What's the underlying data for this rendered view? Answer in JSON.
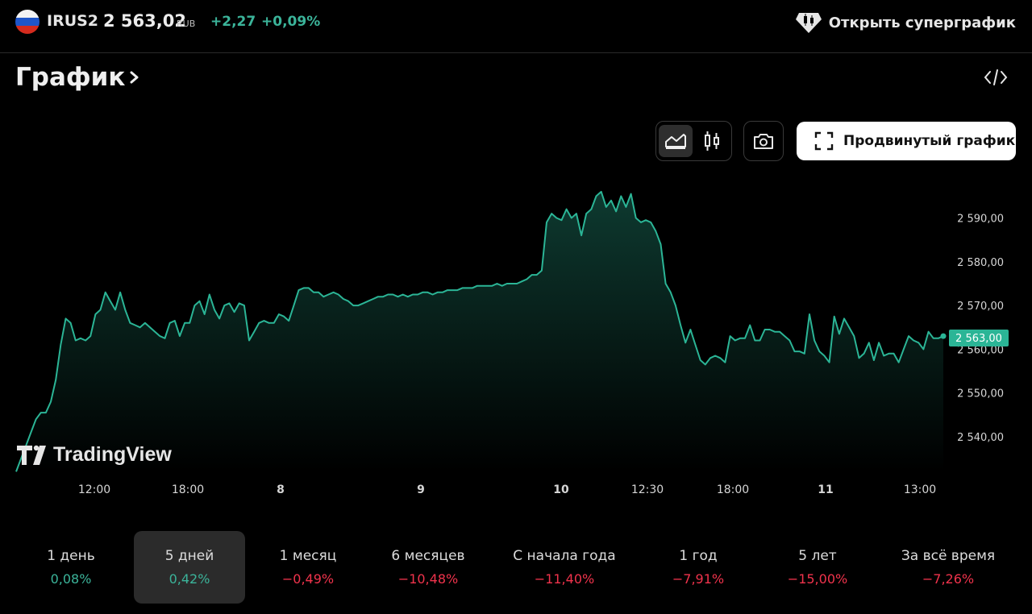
{
  "header": {
    "ticker": "IRUS2",
    "price": "2 563,02",
    "currency": "RUB",
    "change_abs": "+2,27",
    "change_pct": "+0,09%",
    "flag_icon": "russia-flag-icon",
    "supergraph_label": "Открыть суперграфик",
    "supergraph_icon": "diamond-candlestick-icon"
  },
  "section": {
    "title": "График",
    "embed_icon": "code-embed-icon"
  },
  "toolbar": {
    "area_icon": "area-chart-icon",
    "candles_icon": "candlestick-chart-icon",
    "snapshot_icon": "camera-icon",
    "advanced_label": "Продвинутый график",
    "advanced_icon": "fullscreen-icon"
  },
  "colors": {
    "accent": "#2bb596",
    "positive": "#3bb49a",
    "negative": "#f0334c"
  },
  "watermark": "TradingView",
  "chart_data": {
    "type": "area",
    "y_ticks": [
      "2 590,00",
      "2 580,00",
      "2 570,00",
      "2 560,00",
      "2 550,00",
      "2 540,00"
    ],
    "y_tick_values": [
      2590,
      2580,
      2570,
      2560,
      2550,
      2540
    ],
    "x_ticks": [
      "12:00",
      "18:00",
      "8",
      "9",
      "10",
      "12:30",
      "18:00",
      "11",
      "13:00"
    ],
    "last_price_label": "2 563,00",
    "last_price": 2563.0,
    "ylim": [
      2532,
      2597
    ],
    "series": [
      {
        "values": [
          2532,
          2535,
          2538,
          2541,
          2544,
          2545.5,
          2545.5,
          2548,
          2553,
          2561,
          2567,
          2566,
          2562,
          2562.5,
          2562,
          2563,
          2568,
          2569,
          2573,
          2571,
          2569,
          2573,
          2569,
          2566,
          2565.5,
          2565,
          2566,
          2565,
          2564,
          2563,
          2562.5,
          2566,
          2566.5,
          2563,
          2566,
          2566,
          2570,
          2571,
          2568,
          2572.5,
          2569,
          2567,
          2570,
          2570.5,
          2568.5,
          2570.5,
          2570,
          2562,
          2564,
          2566,
          2566.5,
          2566,
          2566,
          2568,
          2567.5,
          2566.5,
          2570,
          2573.5,
          2574,
          2574,
          2573,
          2573,
          2572,
          2572.5,
          2573,
          2572.5,
          2571.5,
          2571,
          2570,
          2570,
          2570.5,
          2571,
          2571.5,
          2572,
          2572,
          2572.5,
          2572.5,
          2572,
          2572.5,
          2572,
          2572.5,
          2572.5,
          2573,
          2573,
          2572.5,
          2573,
          2573,
          2573.5,
          2573.5,
          2573.5,
          2574,
          2574,
          2574,
          2574.5,
          2574.5,
          2574.5,
          2574.5,
          2575,
          2574.5,
          2575,
          2575,
          2575,
          2575.5,
          2576,
          2577,
          2577,
          2578,
          2589,
          2591,
          2590,
          2589.5,
          2592,
          2590,
          2591,
          2586,
          2591,
          2592,
          2595,
          2596,
          2592.5,
          2594,
          2591.5,
          2595,
          2592.5,
          2595.5,
          2590,
          2589,
          2589.5,
          2589,
          2587,
          2584,
          2575,
          2573,
          2570,
          2565.5,
          2561.5,
          2564.5,
          2561,
          2557.5,
          2556.5,
          2558,
          2558.5,
          2558,
          2557,
          2563,
          2562,
          2562.5,
          2562.5,
          2565.5,
          2562,
          2562,
          2564.5,
          2564.5,
          2564,
          2564,
          2563,
          2562,
          2559.5,
          2559.5,
          2559,
          2568,
          2562,
          2559.5,
          2558.5,
          2557,
          2567.5,
          2563.5,
          2567,
          2565,
          2563,
          2558,
          2559,
          2561.5,
          2557.5,
          2561.5,
          2558.5,
          2559,
          2559,
          2557,
          2560,
          2563,
          2562,
          2561.5,
          2560,
          2564,
          2562.5,
          2562.5,
          2563
        ]
      }
    ]
  },
  "periods": [
    {
      "label": "1 день",
      "value": "0,08%",
      "sign": "pos",
      "active": false
    },
    {
      "label": "5 дней",
      "value": "0,42%",
      "sign": "pos",
      "active": true
    },
    {
      "label": "1 месяц",
      "value": "−0,49%",
      "sign": "neg",
      "active": false
    },
    {
      "label": "6 месяцев",
      "value": "−10,48%",
      "sign": "neg",
      "active": false
    },
    {
      "label": "С начала года",
      "value": "−11,40%",
      "sign": "neg",
      "active": false
    },
    {
      "label": "1 год",
      "value": "−7,91%",
      "sign": "neg",
      "active": false
    },
    {
      "label": "5 лет",
      "value": "−15,00%",
      "sign": "neg",
      "active": false
    },
    {
      "label": "За всё время",
      "value": "−7,26%",
      "sign": "neg",
      "active": false
    }
  ]
}
